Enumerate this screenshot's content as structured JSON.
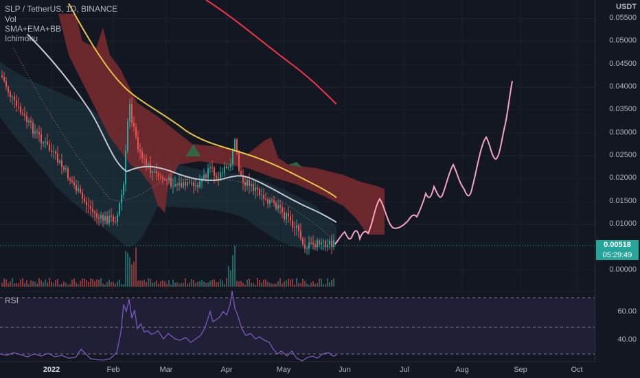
{
  "legend": {
    "symbol": "SLP / TetherUS, 1D, BINANCE",
    "indicators": [
      "Vol",
      "SMA+EMA+BB",
      "Ichimoku"
    ]
  },
  "price_axis": {
    "currency": "USDT",
    "ticks": [
      "0.05500",
      "0.05000",
      "0.04500",
      "0.04000",
      "0.03500",
      "0.03000",
      "0.02500",
      "0.02000",
      "0.01500",
      "0.01000",
      "0.00000"
    ],
    "last_price": "0.00518",
    "countdown": "05:29:49"
  },
  "rsi": {
    "label": "RSI",
    "ticks": [
      "60.00",
      "40.00"
    ]
  },
  "time_axis": {
    "labels": [
      "2022",
      "Feb",
      "Mar",
      "Apr",
      "May",
      "Jun",
      "Jul",
      "Aug",
      "Sep",
      "Oct"
    ]
  },
  "colors": {
    "background": "#131722",
    "up_candle": "#26a69a",
    "down_candle": "#ef5350",
    "sma_red": "#f23645",
    "sma_yellow": "#e8c547",
    "sma_white": "#c6c9d2",
    "projection": "#f7a3c4",
    "cloud_red": "#7a2a2e",
    "cloud_green": "#2f6b45",
    "rsi_line": "#7e57c2"
  }
}
